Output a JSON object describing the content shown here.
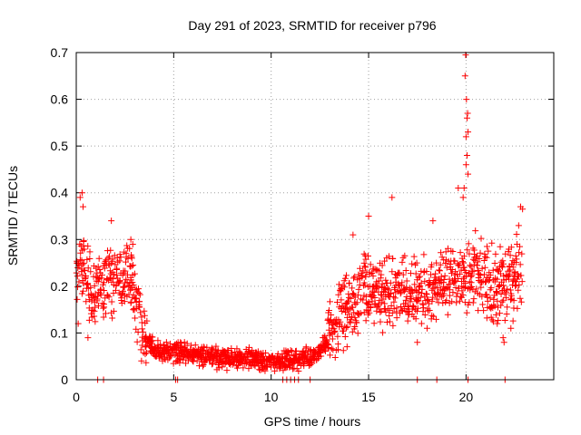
{
  "chart_data": {
    "type": "scatter",
    "title": "Day 291 of 2023, SRMTID for receiver p796",
    "xlabel": "GPS time / hours",
    "ylabel": "SRMTID / TECUs",
    "xlim": [
      0,
      24.5
    ],
    "ylim": [
      0,
      0.7
    ],
    "xticks": [
      0,
      5,
      10,
      15,
      20
    ],
    "yticks": [
      0,
      0.1,
      0.2,
      0.3,
      0.4,
      0.5,
      0.6,
      0.7
    ],
    "grid": true,
    "marker": "+",
    "color": "#ff0000",
    "series": [
      {
        "name": "SRMTID",
        "trend": [
          [
            0.0,
            0.22
          ],
          [
            0.2,
            0.26
          ],
          [
            0.4,
            0.23
          ],
          [
            0.6,
            0.21
          ],
          [
            0.8,
            0.17
          ],
          [
            1.0,
            0.19
          ],
          [
            1.2,
            0.22
          ],
          [
            1.4,
            0.18
          ],
          [
            1.6,
            0.24
          ],
          [
            1.8,
            0.21
          ],
          [
            2.0,
            0.22
          ],
          [
            2.2,
            0.24
          ],
          [
            2.4,
            0.2
          ],
          [
            2.6,
            0.24
          ],
          [
            2.8,
            0.22
          ],
          [
            3.0,
            0.17
          ],
          [
            3.2,
            0.13
          ],
          [
            3.5,
            0.1
          ],
          [
            3.8,
            0.08
          ],
          [
            4.0,
            0.06
          ],
          [
            4.5,
            0.06
          ],
          [
            5.0,
            0.06
          ],
          [
            5.5,
            0.06
          ],
          [
            6.0,
            0.055
          ],
          [
            6.5,
            0.05
          ],
          [
            7.0,
            0.05
          ],
          [
            7.5,
            0.045
          ],
          [
            8.0,
            0.045
          ],
          [
            8.5,
            0.045
          ],
          [
            9.0,
            0.045
          ],
          [
            9.5,
            0.04
          ],
          [
            10.0,
            0.04
          ],
          [
            10.5,
            0.04
          ],
          [
            11.0,
            0.045
          ],
          [
            11.5,
            0.045
          ],
          [
            12.0,
            0.05
          ],
          [
            12.5,
            0.06
          ],
          [
            12.8,
            0.08
          ],
          [
            13.0,
            0.1
          ],
          [
            13.3,
            0.12
          ],
          [
            13.6,
            0.14
          ],
          [
            14.0,
            0.15
          ],
          [
            14.4,
            0.17
          ],
          [
            14.8,
            0.2
          ],
          [
            15.2,
            0.19
          ],
          [
            15.6,
            0.18
          ],
          [
            16.0,
            0.18
          ],
          [
            16.5,
            0.2
          ],
          [
            17.0,
            0.18
          ],
          [
            17.5,
            0.19
          ],
          [
            18.0,
            0.18
          ],
          [
            18.5,
            0.2
          ],
          [
            19.0,
            0.21
          ],
          [
            19.5,
            0.22
          ],
          [
            20.0,
            0.22
          ],
          [
            20.5,
            0.22
          ],
          [
            21.0,
            0.21
          ],
          [
            21.5,
            0.2
          ],
          [
            22.0,
            0.21
          ],
          [
            22.5,
            0.22
          ],
          [
            22.9,
            0.24
          ]
        ],
        "peaks": [
          [
            19.98,
            0.695
          ],
          [
            19.95,
            0.65
          ],
          [
            20.02,
            0.6
          ],
          [
            20.08,
            0.57
          ],
          [
            20.05,
            0.56
          ],
          [
            20.1,
            0.53
          ],
          [
            20.0,
            0.52
          ],
          [
            20.05,
            0.48
          ],
          [
            20.0,
            0.46
          ],
          [
            20.1,
            0.44
          ],
          [
            19.9,
            0.41
          ],
          [
            19.6,
            0.41
          ],
          [
            19.85,
            0.39
          ],
          [
            0.3,
            0.4
          ],
          [
            0.2,
            0.39
          ],
          [
            0.35,
            0.37
          ],
          [
            16.2,
            0.39
          ],
          [
            15.0,
            0.35
          ],
          [
            18.3,
            0.34
          ],
          [
            1.8,
            0.34
          ],
          [
            22.8,
            0.37
          ],
          [
            22.9,
            0.365
          ],
          [
            22.7,
            0.33
          ],
          [
            2.8,
            0.3
          ],
          [
            2.9,
            0.29
          ],
          [
            14.2,
            0.31
          ],
          [
            0.05,
            0.25
          ],
          [
            0.1,
            0.12
          ],
          [
            0.6,
            0.09
          ],
          [
            21.6,
            0.12
          ],
          [
            22.3,
            0.11
          ],
          [
            21.9,
            0.09
          ],
          [
            21.95,
            0.08
          ],
          [
            17.5,
            0.08
          ],
          [
            18.0,
            0.11
          ]
        ],
        "zero_points": [
          1.1,
          1.4,
          5.1,
          5.2,
          10.6,
          10.8,
          11.0,
          11.2,
          11.4,
          12.0,
          17.5,
          18.5,
          20.1,
          22.0
        ]
      }
    ]
  }
}
